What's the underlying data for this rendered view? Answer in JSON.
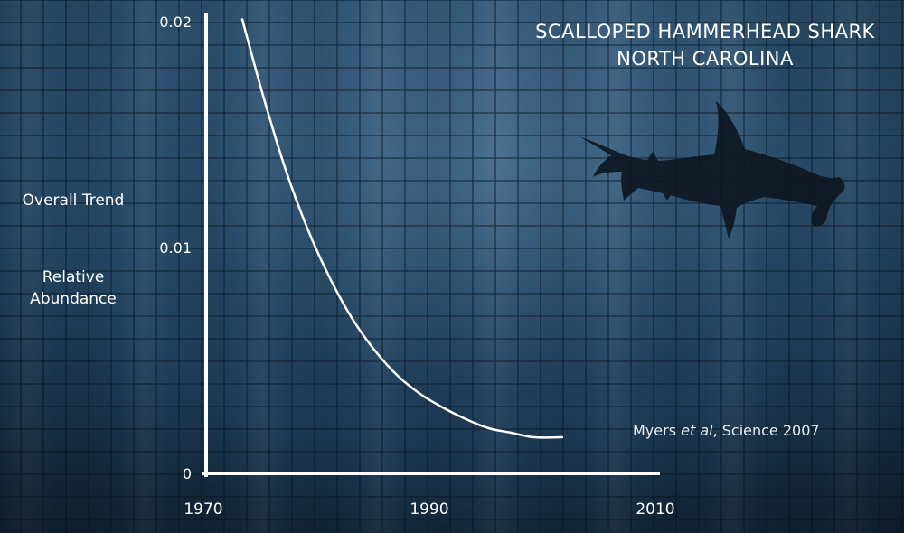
{
  "chart_data": {
    "type": "line",
    "title": [
      "SCALLOPED HAMMERHEAD SHARK",
      "NORTH CAROLINA"
    ],
    "ylabel": [
      "Overall Trend",
      "Relative Abundance"
    ],
    "xlabel": "",
    "xlim": [
      1970,
      2010
    ],
    "ylim": [
      0,
      0.02
    ],
    "x_ticks": [
      {
        "value": 1970,
        "label": "1970"
      },
      {
        "value": 1990,
        "label": "1990"
      },
      {
        "value": 2010,
        "label": "2010"
      }
    ],
    "y_ticks": [
      {
        "value": 0,
        "label": "0"
      },
      {
        "value": 0.01,
        "label": "0.01"
      },
      {
        "value": 0.02,
        "label": "0.02"
      }
    ],
    "grid": false,
    "series": [
      {
        "x": [
          1973.2,
          1975,
          1977,
          1979,
          1981,
          1983,
          1985,
          1987,
          1989,
          1991,
          1993,
          1995,
          1997,
          1999,
          2001.5
        ],
        "y": [
          0.0201,
          0.0168,
          0.0135,
          0.0108,
          0.0086,
          0.0068,
          0.0054,
          0.0043,
          0.0035,
          0.0029,
          0.0024,
          0.002,
          0.0018,
          0.0016,
          0.0016
        ]
      }
    ],
    "citation": {
      "authors": "Myers ",
      "etal": "et al",
      "source": ", Science 2007"
    }
  },
  "colors": {
    "line": "#ffffff",
    "axis": "#ffffff",
    "shark": "#0d1721"
  },
  "decor": {
    "shark_icon": "hammerhead-shark-silhouette"
  }
}
